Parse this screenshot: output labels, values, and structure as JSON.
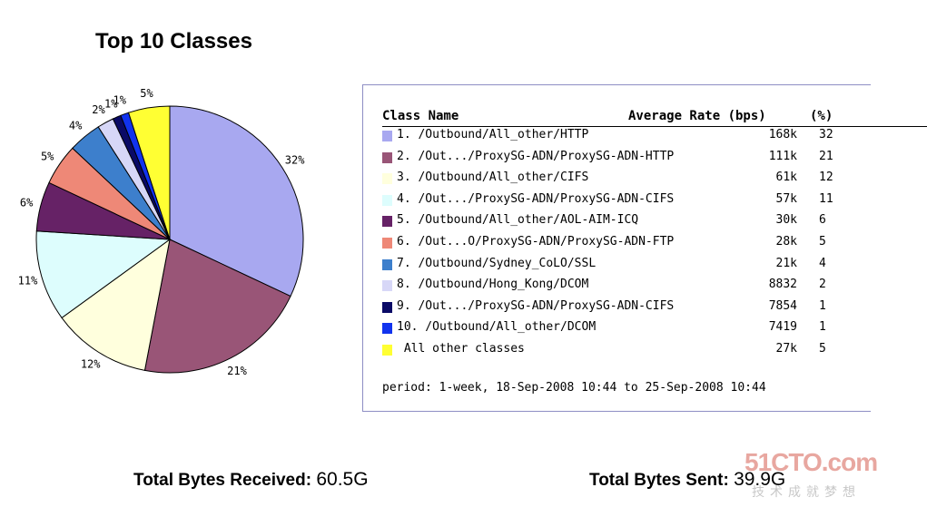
{
  "chart_data": {
    "type": "pie",
    "title": "Top 10 Classes",
    "slices": [
      {
        "label": "1. /Outbound/All_other/HTTP",
        "rate": "168k",
        "percent": 32,
        "color": "#a8a8f0"
      },
      {
        "label": "2. /Out.../ProxySG-ADN/ProxySG-ADN-HTTP",
        "rate": "111k",
        "percent": 21,
        "color": "#995577"
      },
      {
        "label": "3. /Outbound/All_other/CIFS",
        "rate": "61k",
        "percent": 12,
        "color": "#ffffdd"
      },
      {
        "label": "4. /Out.../ProxySG-ADN/ProxySG-ADN-CIFS",
        "rate": "57k",
        "percent": 11,
        "color": "#ddfdfd"
      },
      {
        "label": "5. /Outbound/All_other/AOL-AIM-ICQ",
        "rate": "30k",
        "percent": 6,
        "color": "#662266"
      },
      {
        "label": "6. /Out...O/ProxySG-ADN/ProxySG-ADN-FTP",
        "rate": "28k",
        "percent": 5,
        "color": "#ee8877"
      },
      {
        "label": "7. /Outbound/Sydney_CoLO/SSL",
        "rate": "21k",
        "percent": 4,
        "color": "#3d7fcc"
      },
      {
        "label": "8. /Outbound/Hong_Kong/DCOM",
        "rate": "8832",
        "percent": 2,
        "color": "#d7d7f7"
      },
      {
        "label": "9. /Out.../ProxySG-ADN/ProxySG-ADN-CIFS",
        "rate": "7854",
        "percent": 1,
        "color": "#0a0a66"
      },
      {
        "label": "10. /Outbound/All_other/DCOM",
        "rate": "7419",
        "percent": 1,
        "color": "#1133ee"
      },
      {
        "label": " All other classes",
        "rate": "27k",
        "percent": 5,
        "color": "#ffff33"
      }
    ],
    "slice_labels": [
      "32%",
      "21%",
      "12%",
      "11%",
      "6%",
      "5%",
      "4%",
      "2%",
      "1%",
      "1%",
      "5%"
    ]
  },
  "legend": {
    "header": {
      "class_name": "Class Name",
      "average_rate": "Average Rate (bps)",
      "percent": "(%)"
    },
    "percent_col": [
      "32",
      "21",
      "12",
      "11",
      "6",
      "5",
      "4",
      "2",
      "1",
      "1",
      "5"
    ],
    "period": "period: 1-week, 18-Sep-2008 10:44 to 25-Sep-2008 10:44"
  },
  "totals": {
    "received_label": "Total Bytes Received:",
    "received_value": "60.5G",
    "sent_label": "Total Bytes Sent:",
    "sent_value": "39.9G"
  },
  "watermark": {
    "brand": "51CTO.com",
    "tagline": "技术成就梦想"
  }
}
